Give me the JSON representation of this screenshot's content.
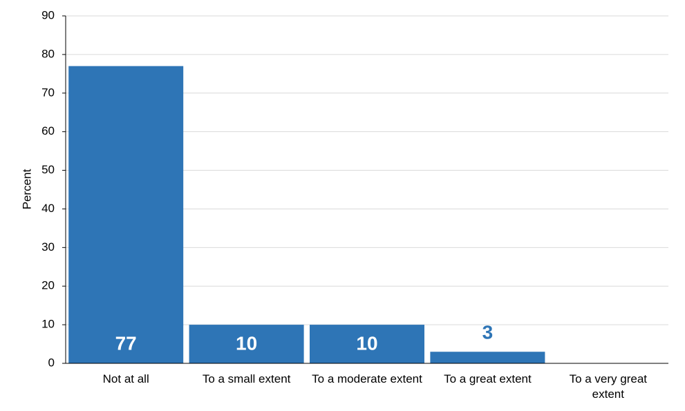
{
  "chart_data": {
    "type": "bar",
    "y_label": "Percent",
    "categories": [
      "Not at all",
      "To a small extent",
      "To a moderate extent",
      "To a great extent",
      "To a very great extent"
    ],
    "values": [
      77,
      10,
      10,
      3,
      null
    ],
    "color": "#2e75b6",
    "ylim": [
      0,
      90
    ],
    "yticks": [
      0,
      10,
      20,
      30,
      40,
      50,
      60,
      70,
      80,
      90
    ],
    "grid": true
  }
}
